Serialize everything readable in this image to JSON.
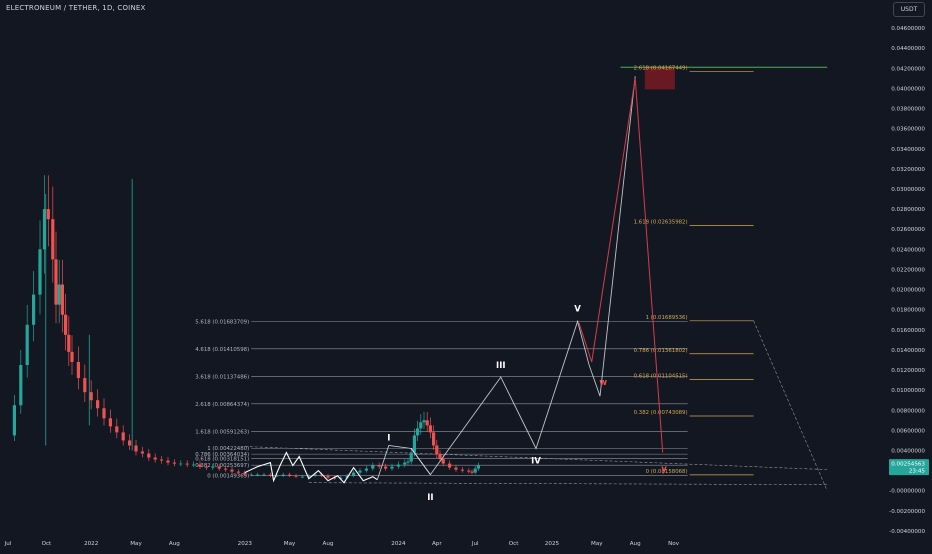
{
  "header": {
    "title": "ELECTRONEUM / TETHER, 1D, COINEX",
    "currency": "USDT"
  },
  "price_badge": {
    "value": "0.00254563",
    "time": "23:45",
    "color": "#26a69a"
  },
  "colors": {
    "background": "#131722",
    "up": "#26a69a",
    "down": "#ef5350",
    "fib_left": "#b2b5be",
    "fib_right": "#d4a853",
    "target_zone": "#7a1a22",
    "target_line": "#4caf50",
    "projection": "#e0e0e0",
    "abc": "#d43d4a"
  },
  "chart_data": {
    "type": "line",
    "x_axis": {
      "labels": [
        "Jul",
        "Oct",
        "2022",
        "May",
        "Aug",
        "2023",
        "May",
        "Aug",
        "2024",
        "Apr",
        "Jul",
        "Oct",
        "2025",
        "May",
        "Aug",
        "Nov"
      ],
      "t": [
        0,
        6,
        13,
        20,
        26,
        37,
        44,
        50,
        61,
        67,
        73,
        79,
        85,
        92,
        98,
        104
      ]
    },
    "y_axis": {
      "ylim": [
        -0.0045,
        0.047
      ],
      "ticks": [
        "0.04600000",
        "0.04400000",
        "0.04200000",
        "0.04000000",
        "0.03800000",
        "0.03600000",
        "0.03400000",
        "0.03200000",
        "0.03000000",
        "0.02800000",
        "0.02600000",
        "0.02400000",
        "0.02200000",
        "0.02000000",
        "0.01800000",
        "0.01600000",
        "0.01400000",
        "0.01200000",
        "0.01000000",
        "0.00800000",
        "0.00600000",
        "0.00400000",
        "0.00200000",
        "-0.00000000",
        "-0.00200000",
        "-0.00400000"
      ]
    },
    "price_history": [
      [
        0.3,
        0.0055
      ],
      [
        1,
        0.0085
      ],
      [
        2,
        0.0125
      ],
      [
        3,
        0.0165
      ],
      [
        4,
        0.0195
      ],
      [
        5,
        0.024
      ],
      [
        5.7,
        0.028
      ],
      [
        6.3,
        0.027
      ],
      [
        7,
        0.023
      ],
      [
        7.5,
        0.0185
      ],
      [
        8,
        0.0205
      ],
      [
        8.5,
        0.0175
      ],
      [
        9,
        0.0155
      ],
      [
        9.5,
        0.0138
      ],
      [
        10,
        0.0128
      ],
      [
        11,
        0.0112
      ],
      [
        12,
        0.0098
      ],
      [
        13,
        0.009
      ],
      [
        14,
        0.0082
      ],
      [
        15,
        0.0072
      ],
      [
        16,
        0.0064
      ],
      [
        17,
        0.0058
      ],
      [
        18,
        0.005
      ],
      [
        19,
        0.0045
      ],
      [
        20,
        0.0039
      ],
      [
        21,
        0.0037
      ],
      [
        22,
        0.0033
      ],
      [
        23,
        0.0031
      ],
      [
        24,
        0.003
      ],
      [
        25,
        0.0028
      ],
      [
        26,
        0.0027
      ],
      [
        27,
        0.0027
      ],
      [
        28,
        0.0026
      ],
      [
        29,
        0.0026
      ],
      [
        30,
        0.0024
      ],
      [
        31,
        0.0023
      ],
      [
        32,
        0.0024
      ],
      [
        33,
        0.0022
      ],
      [
        34,
        0.0021
      ],
      [
        35,
        0.0019
      ],
      [
        36,
        0.0018
      ],
      [
        37,
        0.0016
      ],
      [
        38,
        0.0016
      ],
      [
        39,
        0.0016
      ],
      [
        40,
        0.0016
      ],
      [
        41,
        0.0015
      ],
      [
        42,
        0.0015
      ],
      [
        43,
        0.0016
      ],
      [
        44,
        0.0015
      ],
      [
        45,
        0.0014
      ],
      [
        46,
        0.0014
      ],
      [
        47,
        0.0015
      ],
      [
        48,
        0.0016
      ],
      [
        49,
        0.0015
      ],
      [
        50,
        0.0013
      ],
      [
        51,
        0.0012
      ],
      [
        52,
        0.0013
      ],
      [
        53,
        0.0015
      ],
      [
        54,
        0.0018
      ],
      [
        55,
        0.002
      ],
      [
        56,
        0.0022
      ],
      [
        57,
        0.0025
      ],
      [
        58,
        0.0024
      ],
      [
        59,
        0.0022
      ],
      [
        60,
        0.0024
      ],
      [
        61,
        0.0026
      ],
      [
        62,
        0.0028
      ],
      [
        62.5,
        0.0029
      ],
      [
        63,
        0.0038
      ],
      [
        63.5,
        0.0055
      ],
      [
        64,
        0.0062
      ],
      [
        64.5,
        0.0068
      ],
      [
        65,
        0.007
      ],
      [
        65.5,
        0.0065
      ],
      [
        66,
        0.0058
      ],
      [
        66.5,
        0.0045
      ],
      [
        67,
        0.0036
      ],
      [
        67.5,
        0.0032
      ],
      [
        68,
        0.0027
      ],
      [
        69,
        0.0023
      ],
      [
        70,
        0.0021
      ],
      [
        71,
        0.002
      ],
      [
        72,
        0.0019
      ],
      [
        72.5,
        0.0018
      ],
      [
        73,
        0.0022
      ],
      [
        73.5,
        0.0025
      ]
    ],
    "spikes": [
      [
        5.9,
        0.0295,
        0.0045
      ],
      [
        12.7,
        0.0155,
        0.0065
      ],
      [
        19.4,
        0.031,
        0.004
      ]
    ],
    "projection_path": [
      [
        63,
        0.00422
      ],
      [
        66,
        0.0016
      ],
      [
        77,
        0.0113
      ],
      [
        82.5,
        0.0042
      ],
      [
        89,
        0.01684
      ],
      [
        90.8,
        0.0125
      ],
      [
        92.5,
        0.0094
      ],
      [
        98,
        0.0412
      ]
    ],
    "abc_path": [
      [
        89.2,
        0.0167
      ],
      [
        91.2,
        0.0128
      ],
      [
        98,
        0.041
      ],
      [
        102.3,
        0.0038
      ]
    ],
    "sketch_path": [
      [
        37,
        0.0018
      ],
      [
        39,
        0.0024
      ],
      [
        41,
        0.0028
      ],
      [
        41.5,
        0.001
      ],
      [
        42.5,
        0.0025
      ],
      [
        43.5,
        0.0038
      ],
      [
        44.5,
        0.0025
      ],
      [
        45.5,
        0.0034
      ],
      [
        47,
        0.0012
      ],
      [
        48.5,
        0.002
      ],
      [
        50,
        0.001
      ],
      [
        51.5,
        0.0015
      ],
      [
        52.5,
        0.0008
      ],
      [
        54,
        0.0023
      ],
      [
        55.5,
        0.001
      ],
      [
        57,
        0.0014
      ],
      [
        57.7,
        0.0011
      ]
    ],
    "wave_label_line": [
      [
        57.7,
        0.0011
      ],
      [
        59.5,
        0.0045
      ],
      [
        63,
        0.0042
      ],
      [
        66,
        0.0016
      ]
    ],
    "wave_labels": [
      {
        "text": "I",
        "t": 59.5,
        "v": 0.005,
        "color": "#ffffff"
      },
      {
        "text": "II",
        "t": 66,
        "v": -0.0009,
        "color": "#ffffff"
      },
      {
        "text": "III",
        "t": 77,
        "v": 0.0122,
        "color": "#ffffff"
      },
      {
        "text": "IV",
        "t": 82.5,
        "v": 0.0027,
        "color": "#ffffff"
      },
      {
        "text": "V",
        "t": 89,
        "v": 0.0178,
        "color": "#ffffff"
      },
      {
        "text": "w",
        "t": 93,
        "v": 0.0105,
        "color": "#ef5350"
      },
      {
        "text": "y",
        "t": 102.5,
        "v": 0.0019,
        "color": "#ef5350"
      }
    ],
    "fib_extension_left": {
      "t_start": 38,
      "t_end": 106.2,
      "levels": [
        {
          "label": "5.618 (0.01683709)",
          "v": 0.01683709
        },
        {
          "label": "4.618 (0.01410598)",
          "v": 0.01410598
        },
        {
          "label": "3.618 (0.01137486)",
          "v": 0.01137486
        },
        {
          "label": "2.618 (0.00864374)",
          "v": 0.00864374
        },
        {
          "label": "1.618 (0.00591263)",
          "v": 0.00591263
        },
        {
          "label": "1 (0.00422480)",
          "v": 0.0042248
        },
        {
          "label": "0.786 (0.00364034)",
          "v": 0.00364034
        },
        {
          "label": "0.618 (0.00318151)",
          "v": 0.00318151
        },
        {
          "label": "0.382 (0.00253697)",
          "v": 0.00253697
        },
        {
          "label": "0 (0.00149369)",
          "v": 0.00149369
        }
      ]
    },
    "fib_retracement_right": {
      "t_start": 106.5,
      "t_end": 116.5,
      "levels": [
        {
          "label": "2.618 (0.04167449)",
          "v": 0.04167449
        },
        {
          "label": "1.618 (0.02635982)",
          "v": 0.02635982
        },
        {
          "label": "1 (0.01689536)",
          "v": 0.01689536
        },
        {
          "label": "0.786 (0.01361802)",
          "v": 0.01361802
        },
        {
          "label": "0.618 (0.01104515)",
          "v": 0.01104515
        },
        {
          "label": "0.382 (0.00743089)",
          "v": 0.00743089
        },
        {
          "label": "0 (0.00158068)",
          "v": 0.00158068
        }
      ]
    },
    "target_zone": {
      "t0": 99.5,
      "t1": 104.2,
      "v0": 0.0399,
      "v1": 0.0422
    },
    "target_line": {
      "t0": 95.7,
      "t1": 128,
      "v": 0.0421
    },
    "trend_lines": [
      [
        [
          37,
          0.0044
        ],
        [
          128,
          0.0021
        ]
      ],
      [
        [
          47,
          0.0008
        ],
        [
          128,
          0.0006
        ]
      ],
      [
        [
          116.5,
          0.0169
        ],
        [
          128,
          0.0
        ]
      ]
    ]
  }
}
